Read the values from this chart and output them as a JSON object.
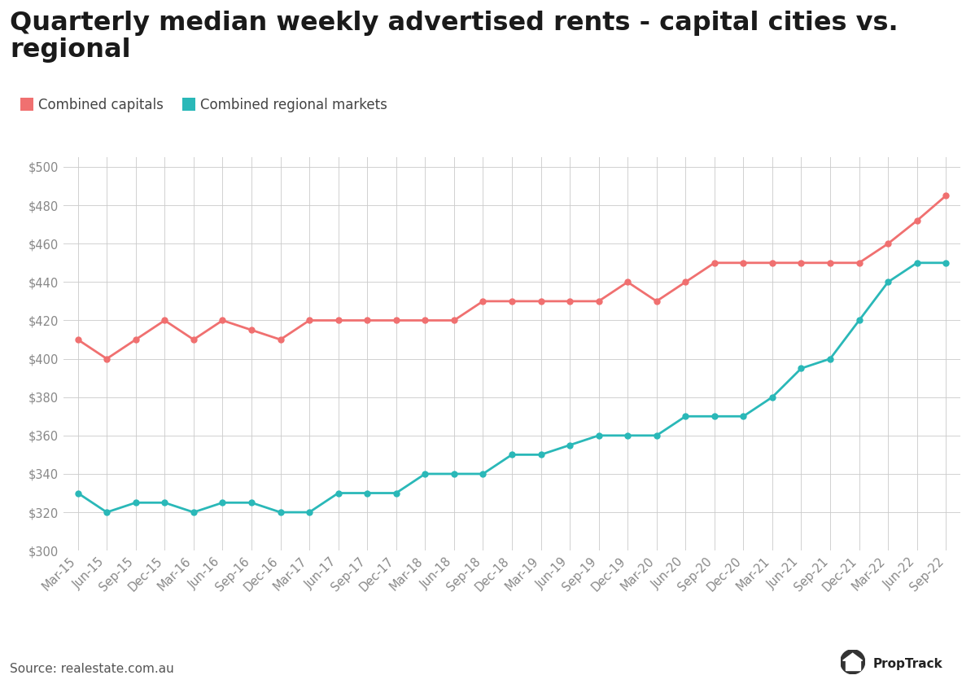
{
  "title_line1": "Quarterly median weekly advertised rents - capital cities vs.",
  "title_line2": "regional",
  "legend_labels": [
    "Combined capitals",
    "Combined regional markets"
  ],
  "source": "Source: realestate.com.au",
  "x_labels": [
    "Mar-15",
    "Jun-15",
    "Sep-15",
    "Dec-15",
    "Mar-16",
    "Jun-16",
    "Sep-16",
    "Dec-16",
    "Mar-17",
    "Jun-17",
    "Sep-17",
    "Dec-17",
    "Mar-18",
    "Jun-18",
    "Sep-18",
    "Dec-18",
    "Mar-19",
    "Jun-19",
    "Sep-19",
    "Dec-19",
    "Mar-20",
    "Jun-20",
    "Sep-20",
    "Dec-20",
    "Mar-21",
    "Jun-21",
    "Sep-21",
    "Dec-21",
    "Mar-22",
    "Jun-22",
    "Sep-22"
  ],
  "capitals": [
    410,
    400,
    410,
    420,
    410,
    420,
    415,
    410,
    420,
    420,
    420,
    420,
    420,
    420,
    430,
    430,
    430,
    430,
    430,
    440,
    430,
    440,
    450,
    450,
    450,
    450,
    450,
    450,
    460,
    472,
    485
  ],
  "regional": [
    330,
    320,
    325,
    325,
    320,
    325,
    325,
    320,
    320,
    330,
    330,
    330,
    340,
    340,
    340,
    350,
    350,
    355,
    360,
    360,
    360,
    370,
    370,
    370,
    380,
    395,
    400,
    420,
    440,
    450,
    450
  ],
  "capitals_color": "#f07070",
  "regional_color": "#2ab8b8",
  "ylim": [
    300,
    505
  ],
  "yticks": [
    300,
    320,
    340,
    360,
    380,
    400,
    420,
    440,
    460,
    480,
    500
  ],
  "background_color": "#ffffff",
  "grid_color": "#cccccc",
  "title_fontsize": 23,
  "axis_fontsize": 10.5,
  "legend_fontsize": 12,
  "marker_size": 5,
  "line_width": 2.0
}
